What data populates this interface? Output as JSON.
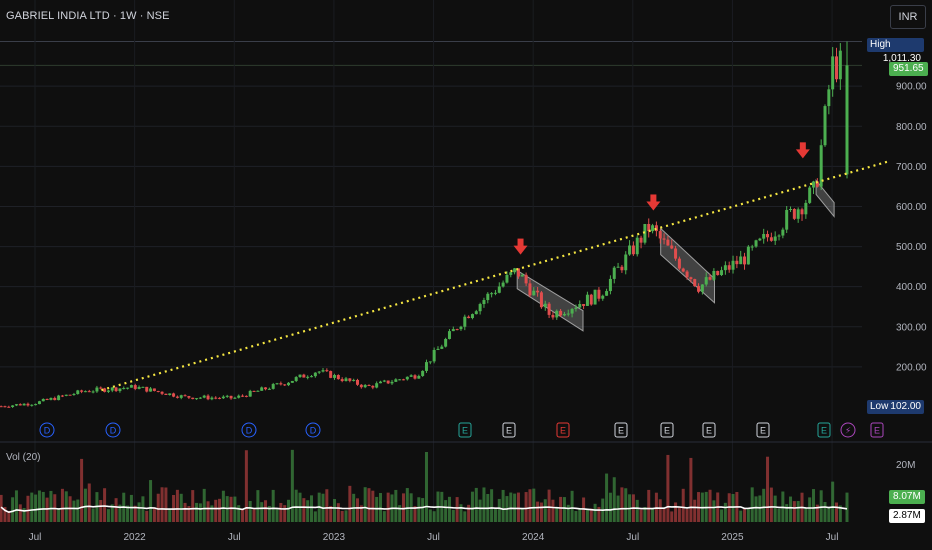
{
  "header": {
    "title": "GABRIEL INDIA LTD · 1W · NSE",
    "currency": "INR"
  },
  "volume_panel": {
    "label": "Vol (20)"
  },
  "colors": {
    "up": "#4caf50",
    "down": "#e04d4d",
    "trendline": "#f5e642",
    "arrow": "#e53935",
    "channel": "#9e9e9e",
    "high_tag": "#1e3a6e",
    "last_tag": "#4caf50"
  },
  "chart_data": [
    {
      "type": "candlestick",
      "title": "GABRIEL INDIA LTD · 1W · NSE",
      "x_axis": {
        "ticks": [
          "Jul",
          "2022",
          "Jul",
          "2023",
          "Jul",
          "2024",
          "Jul",
          "2025",
          "Jul"
        ]
      },
      "y_axis": {
        "ticks": [
          200,
          300,
          400,
          500,
          600,
          700,
          800,
          900
        ],
        "range": [
          100,
          1040
        ],
        "currency": "INR"
      },
      "markers": {
        "high": {
          "label": "High",
          "value": "1,011.30"
        },
        "low": {
          "label": "Low",
          "value": "102.00"
        },
        "last": {
          "value": "951.65"
        }
      },
      "trendline": {
        "style": "dotted",
        "from": [
          "2021-11",
          142
        ],
        "to": [
          "2025-07",
          712
        ]
      },
      "down_arrows_at": [
        "2023-12",
        "2024-08",
        "2025-05"
      ],
      "series_close_approx": [
        [
          "2021-07",
          110
        ],
        [
          "2021-10",
          140
        ],
        [
          "2022-01",
          150
        ],
        [
          "2022-04",
          125
        ],
        [
          "2022-07",
          122
        ],
        [
          "2022-10",
          160
        ],
        [
          "2022-12",
          190
        ],
        [
          "2023-03",
          150
        ],
        [
          "2023-06",
          180
        ],
        [
          "2023-09",
          330
        ],
        [
          "2023-12",
          440
        ],
        [
          "2024-02",
          330
        ],
        [
          "2024-05",
          380
        ],
        [
          "2024-08",
          550
        ],
        [
          "2024-11",
          400
        ],
        [
          "2025-02",
          480
        ],
        [
          "2025-04",
          560
        ],
        [
          "2025-06",
          640
        ],
        [
          "2025-07",
          951.65
        ]
      ],
      "events": [
        "D",
        "D",
        "D",
        "D",
        "E",
        "E",
        "E",
        "E",
        "E",
        "E",
        "E",
        "E",
        "⚡",
        "E"
      ]
    },
    {
      "type": "bar",
      "title": "Vol (20)",
      "y_axis": {
        "ticks": [
          "20M"
        ]
      },
      "markers": {
        "last_volume": "8.07M",
        "ma": "2.87M"
      }
    }
  ]
}
